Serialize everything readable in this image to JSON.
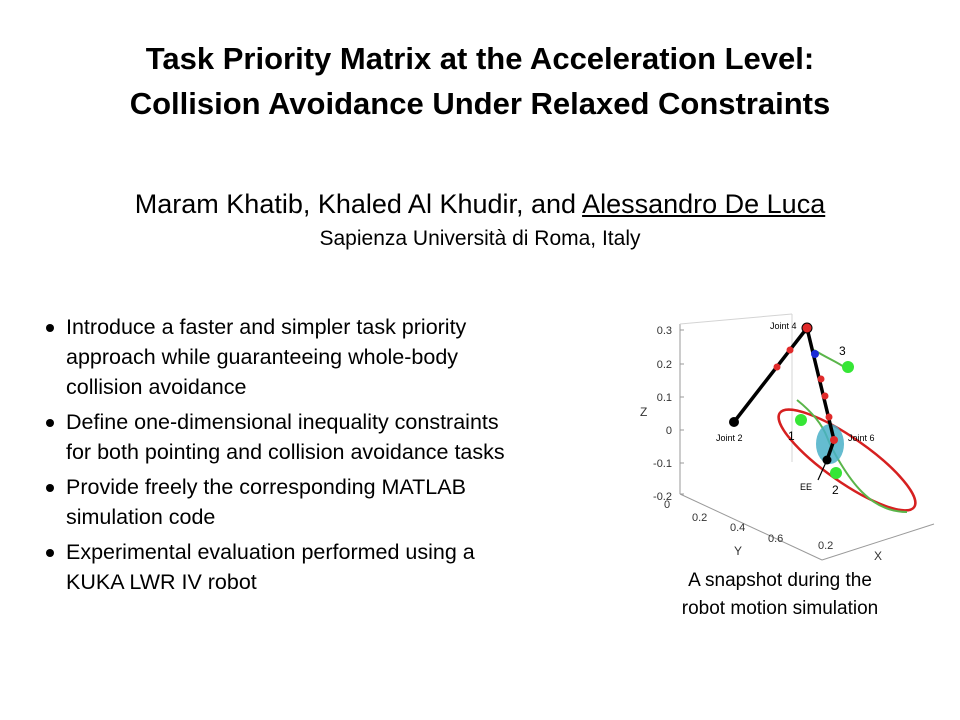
{
  "title": {
    "line1": "Task Priority Matrix at the Acceleration Level:",
    "line2": "Collision Avoidance Under Relaxed Constraints"
  },
  "authors": {
    "plain": "Maram Khatib, Khaled Al Khudir, and ",
    "highlighted": "Alessandro De Luca"
  },
  "affiliation": "Sapienza Università di Roma, Italy",
  "bullets": [
    {
      "lines": [
        "Introduce a faster and simpler task priority",
        "approach while guaranteeing whole-body",
        "collision avoidance"
      ]
    },
    {
      "lines": [
        "Define one-dimensional inequality constraints",
        "for both pointing and collision avoidance tasks"
      ]
    },
    {
      "lines": [
        "Provide freely the corresponding MATLAB",
        "simulation code"
      ]
    },
    {
      "lines": [
        "Experimental evaluation performed using a",
        "KUKA LWR IV robot"
      ]
    }
  ],
  "figure": {
    "z_axis": {
      "label": "Z",
      "ticks": [
        "0.3",
        "0.2",
        "0.1",
        "0",
        "-0.1",
        "-0.2"
      ]
    },
    "y_axis": {
      "label": "Y",
      "ticks": [
        "0",
        "0.2",
        "0.4",
        "0.6"
      ]
    },
    "x_axis": {
      "label": "X",
      "ticks": [
        "0.2"
      ]
    },
    "labels": {
      "joint4": "Joint 4",
      "joint2": "Joint 2",
      "joint6": "Joint 6",
      "ee": "EE",
      "obstacle1": "1",
      "obstacle2": "2",
      "obstacle3": "3"
    },
    "colors": {
      "robot": "#000000",
      "trajectory": "#d62020",
      "path": "#5ab54a",
      "obstacle": "#36e636",
      "sphere": "#4ab0c8",
      "marker": "#e02a2a",
      "blue_marker": "#1a2bd6"
    }
  },
  "caption": {
    "line1": "A snapshot during the",
    "line2": "robot motion simulation"
  }
}
